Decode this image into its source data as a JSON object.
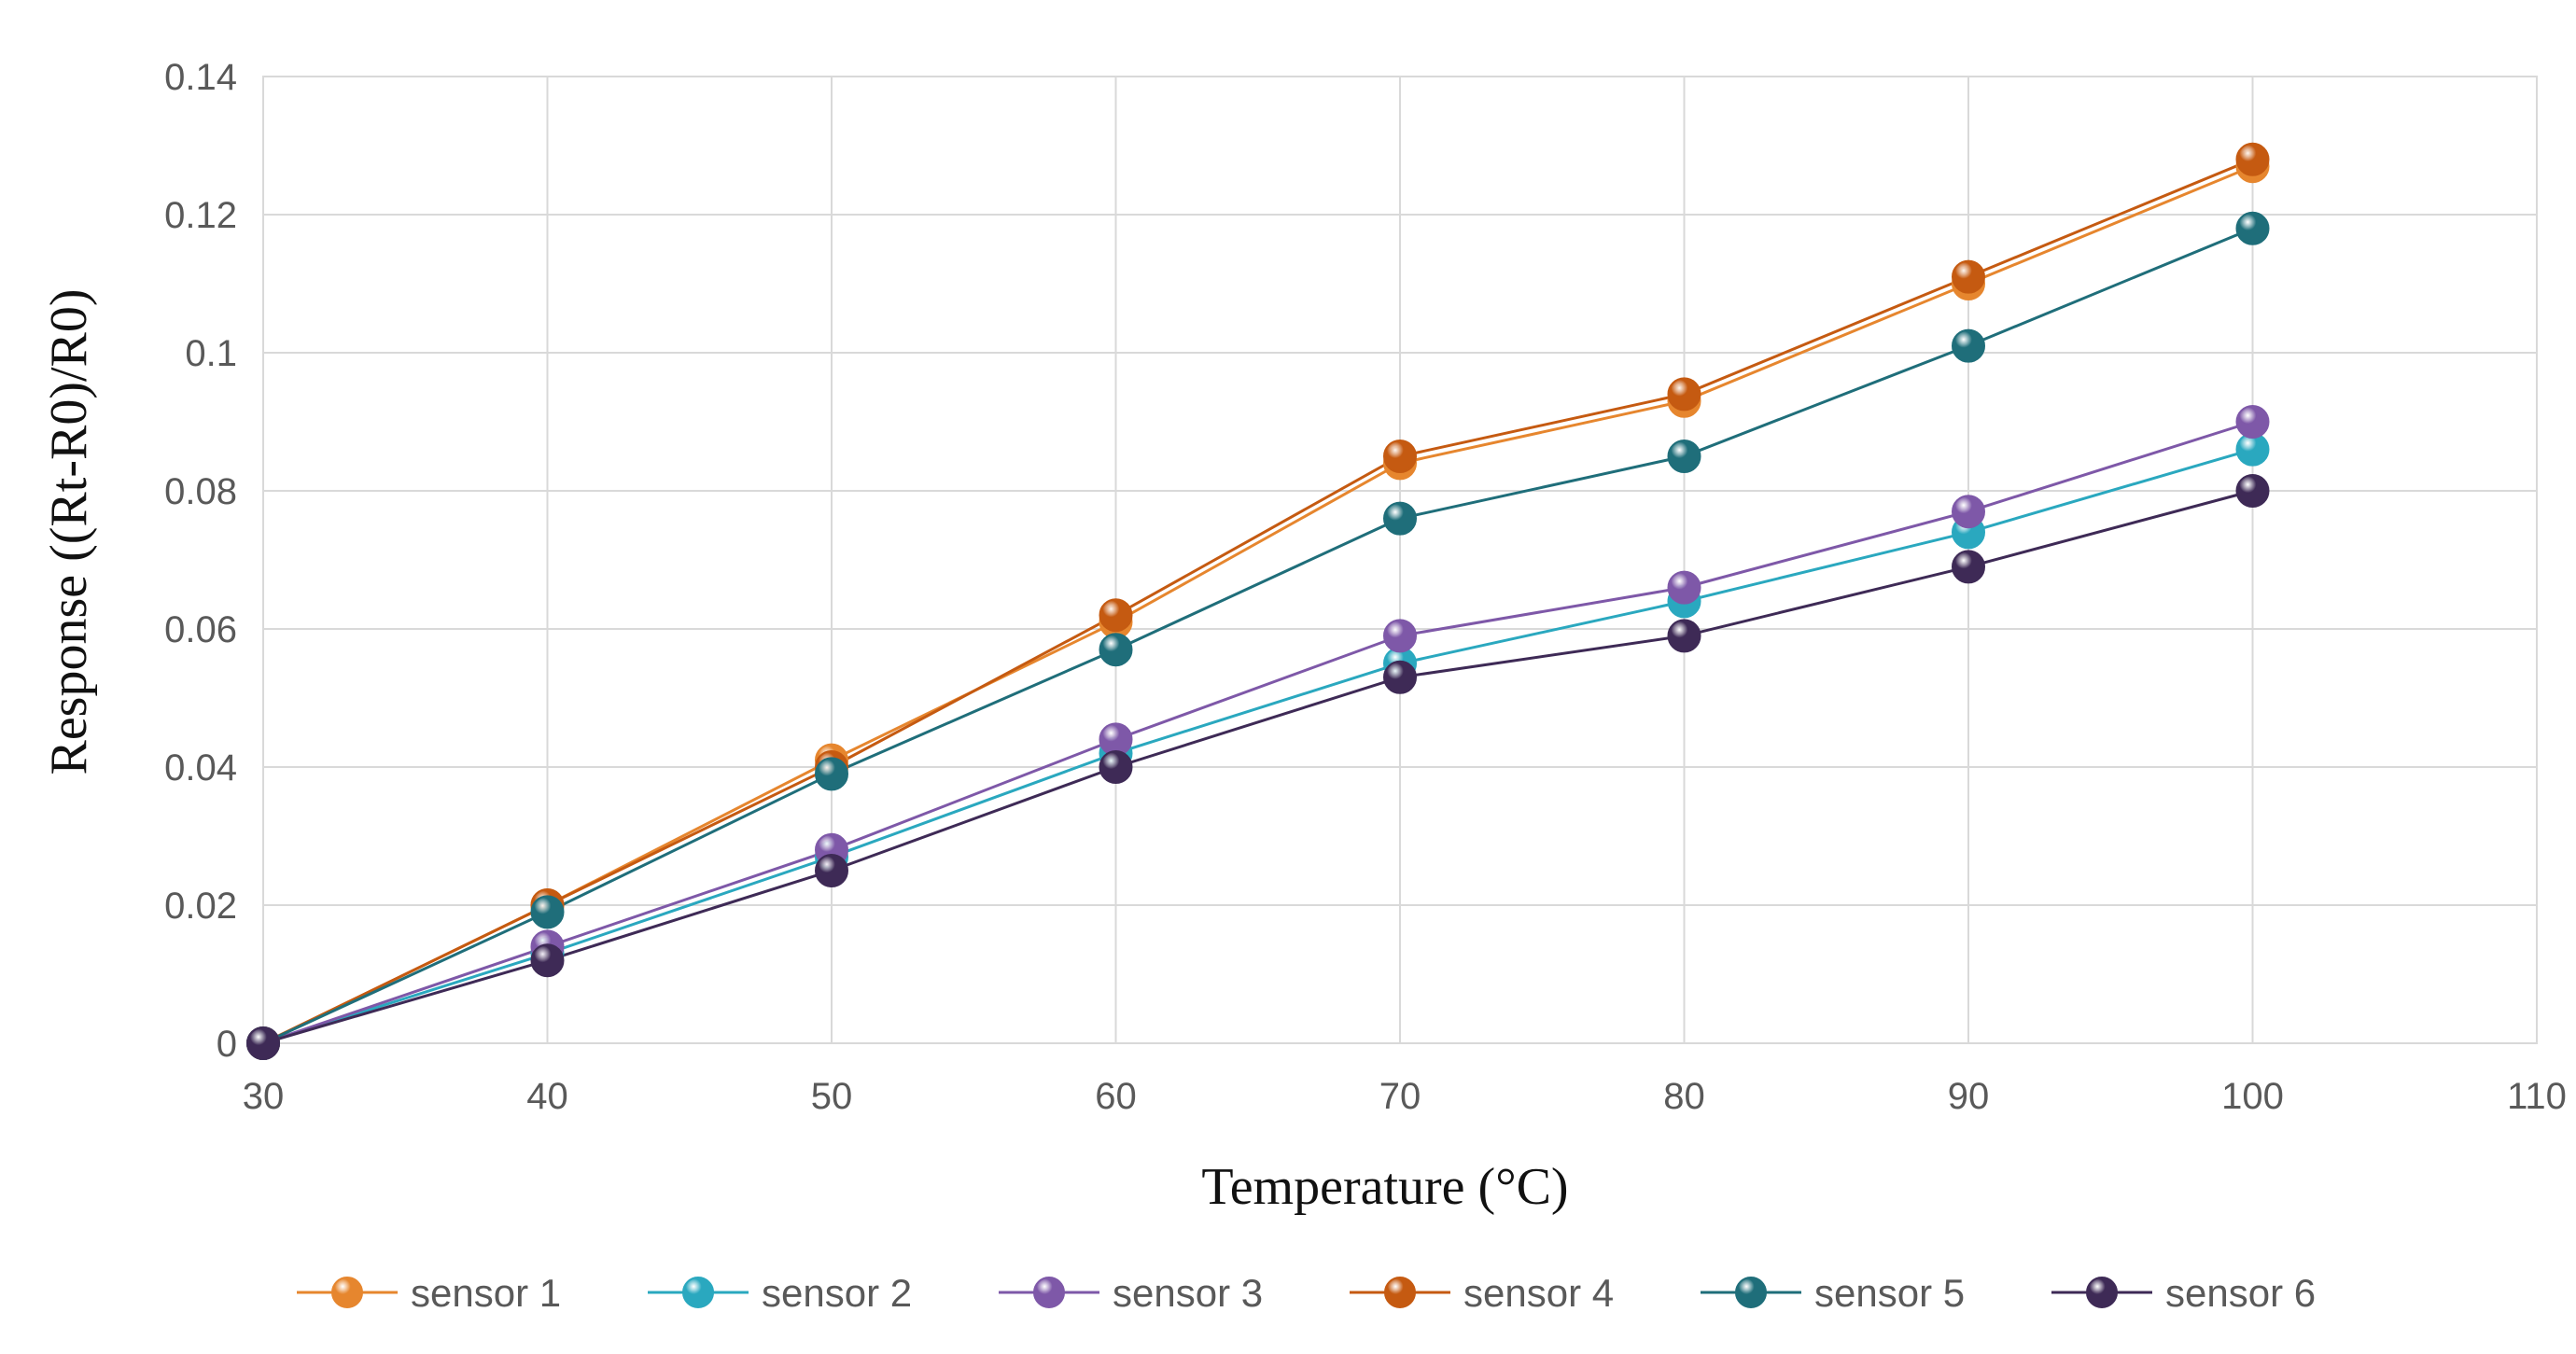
{
  "chart_data": {
    "type": "line",
    "title": "",
    "xlabel": "Temperature (°C)",
    "ylabel": "Response ((Rt-R0)/R0)",
    "xlim": [
      30,
      110
    ],
    "ylim": [
      0,
      0.14
    ],
    "xticks": [
      30,
      40,
      50,
      60,
      70,
      80,
      90,
      100,
      110
    ],
    "yticks": [
      0,
      0.02,
      0.04,
      0.06,
      0.08,
      0.1,
      0.12,
      0.14
    ],
    "xtick_labels": [
      "30",
      "40",
      "50",
      "60",
      "70",
      "80",
      "90",
      "100",
      "110"
    ],
    "ytick_labels": [
      "0",
      "0.02",
      "0.04",
      "0.06",
      "0.08",
      "0.1",
      "0.12",
      "0.14"
    ],
    "grid": true,
    "legend_position": "bottom",
    "x": [
      30,
      40,
      50,
      60,
      70,
      80,
      90,
      100
    ],
    "series": [
      {
        "name": "sensor 1",
        "color": "#e6862e",
        "values": [
          0,
          0.02,
          0.041,
          0.061,
          0.084,
          0.093,
          0.11,
          0.127
        ]
      },
      {
        "name": "sensor 2",
        "color": "#2aa8bf",
        "values": [
          0,
          0.013,
          0.027,
          0.042,
          0.055,
          0.064,
          0.074,
          0.086
        ]
      },
      {
        "name": "sensor 3",
        "color": "#7e58a8",
        "values": [
          0,
          0.014,
          0.028,
          0.044,
          0.059,
          0.066,
          0.077,
          0.09
        ]
      },
      {
        "name": "sensor 4",
        "color": "#c55a11",
        "values": [
          0,
          0.02,
          0.04,
          0.062,
          0.085,
          0.094,
          0.111,
          0.128
        ]
      },
      {
        "name": "sensor 5",
        "color": "#1f6e7a",
        "values": [
          0,
          0.019,
          0.039,
          0.057,
          0.076,
          0.085,
          0.101,
          0.118
        ]
      },
      {
        "name": "sensor 6",
        "color": "#3e2a56",
        "values": [
          0,
          0.012,
          0.025,
          0.04,
          0.053,
          0.059,
          0.069,
          0.08
        ]
      }
    ]
  }
}
